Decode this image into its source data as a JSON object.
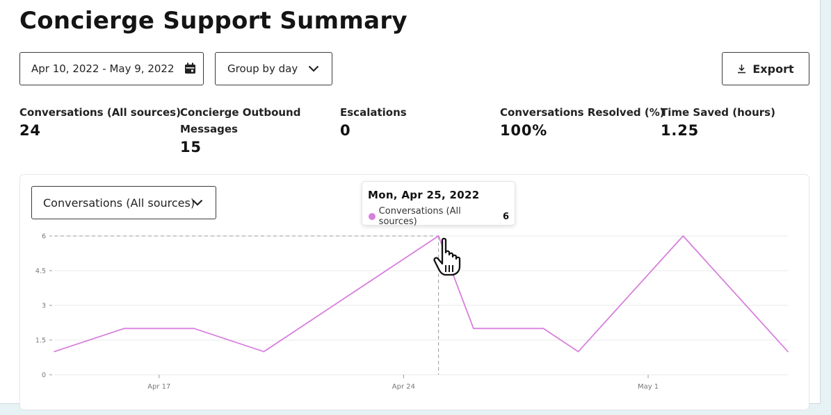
{
  "page": {
    "title": "Concierge Support Summary"
  },
  "toolbar": {
    "date_range": "Apr 10, 2022 - May 9, 2022",
    "group_by": "Group by day",
    "export_label": "Export"
  },
  "metrics": [
    {
      "label": "Conversations (All sources)",
      "value": "24"
    },
    {
      "label_line1": "Concierge Outbound",
      "label_line2": "Messages",
      "value": "15"
    },
    {
      "label": "Escalations",
      "value": "0"
    },
    {
      "label": "Conversations Resolved (%)",
      "value": "100%"
    },
    {
      "label": "Time Saved (hours)",
      "value": "1.25"
    }
  ],
  "chart_panel": {
    "series_selector": "Conversations (All sources)",
    "tooltip": {
      "date": "Mon, Apr 25, 2022",
      "series": "Conversations (All sources)",
      "value": "6"
    }
  },
  "colors": {
    "series": "#d77fdc",
    "grid": "#e8e8e8",
    "axis_text": "#777777"
  },
  "icons": {
    "date": "calendar-icon",
    "group": "chevron-down-icon",
    "export": "download-icon",
    "cursor": "hand-pointer-icon"
  },
  "chart_data": {
    "type": "line",
    "series": [
      {
        "name": "Conversations (All sources)",
        "x": [
          "2022-04-14",
          "2022-04-16",
          "2022-04-18",
          "2022-04-20",
          "2022-04-25",
          "2022-04-26",
          "2022-04-28",
          "2022-04-29",
          "2022-05-02",
          "2022-05-05"
        ],
        "values": [
          1,
          2,
          2,
          1,
          6,
          2,
          2,
          1,
          6,
          1
        ]
      }
    ],
    "y_ticks": [
      0,
      1.5,
      3,
      4.5,
      6
    ],
    "y_tick_labels": [
      "0",
      "1.5",
      "3",
      "4.5",
      "6"
    ],
    "x_ticks": [
      {
        "date": "2022-04-17",
        "label": "Apr 17"
      },
      {
        "date": "2022-04-24",
        "label": "Apr 24"
      },
      {
        "date": "2022-05-01",
        "label": "May 1"
      }
    ],
    "ylim": [
      0,
      6
    ],
    "xlim": [
      "2022-04-14",
      "2022-05-05"
    ],
    "grid": true,
    "hover": {
      "x": "2022-04-25",
      "y": 6
    }
  }
}
